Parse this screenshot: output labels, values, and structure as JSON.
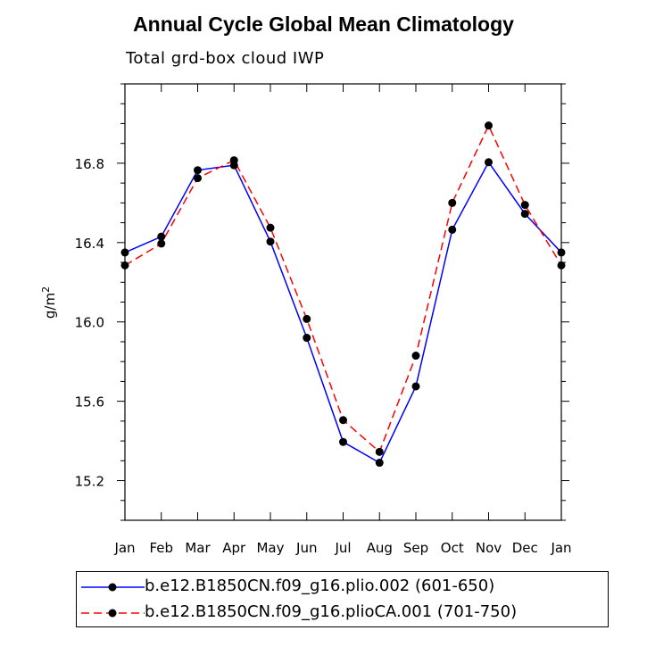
{
  "chart_data": {
    "type": "line",
    "title": "Annual Cycle Global Mean Climatology",
    "subtitle": "Total grd-box cloud IWP",
    "xlabel": "",
    "ylabel": "g/m",
    "ylabel_superscript": "2",
    "categories": [
      "Jan",
      "Feb",
      "Mar",
      "Apr",
      "May",
      "Jun",
      "Jul",
      "Aug",
      "Sep",
      "Oct",
      "Nov",
      "Dec",
      "Jan"
    ],
    "ylim": [
      15.0,
      17.2
    ],
    "yticks": [
      "15.2",
      "15.6",
      "16.0",
      "16.4",
      "16.8"
    ],
    "ytick_values": [
      15.2,
      15.6,
      16.0,
      16.4,
      16.8
    ],
    "grid": false,
    "legend_position": "bottom",
    "series": [
      {
        "name": "b.e12.B1850CN.f09_g16.plio.002 (601-650)",
        "color": "#0000ff",
        "dash": "solid",
        "values": [
          16.35,
          16.43,
          16.765,
          16.79,
          16.405,
          15.92,
          15.395,
          15.29,
          15.675,
          16.465,
          16.805,
          16.545,
          16.35
        ]
      },
      {
        "name": "b.e12.B1850CN.f09_g16.plioCA.001 (701-750)",
        "color": "#ff0000",
        "dash": "dashed",
        "values": [
          16.285,
          16.395,
          16.725,
          16.815,
          16.475,
          16.015,
          15.505,
          15.345,
          15.83,
          16.6,
          16.99,
          16.59,
          16.285
        ]
      }
    ]
  }
}
